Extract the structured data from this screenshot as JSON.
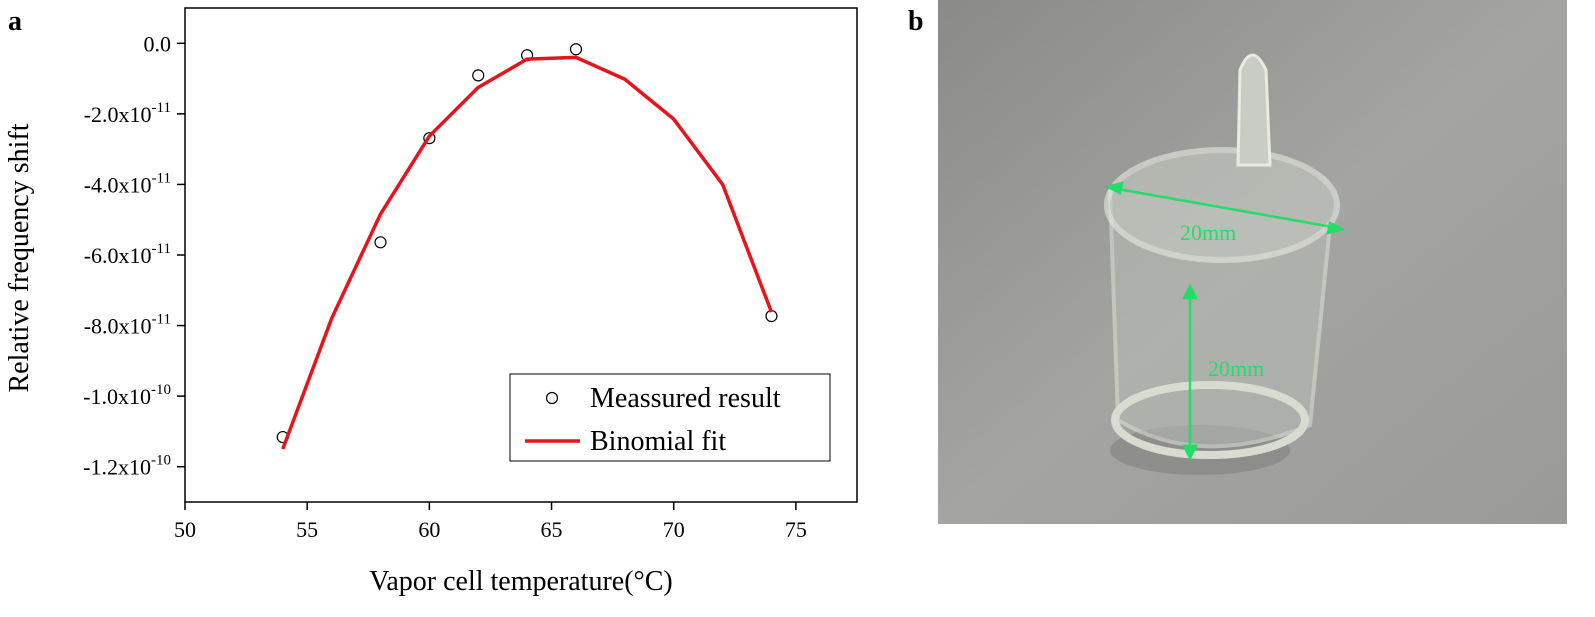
{
  "panel_labels": [
    "a",
    "b"
  ],
  "chart_data": {
    "type": "scatter",
    "xlabel": "Vapor cell temperature(°C)",
    "ylabel": "Relative frequency shift",
    "xlim": [
      50,
      77.5
    ],
    "xticks": [
      50,
      55,
      60,
      65,
      70,
      75
    ],
    "ylim": [
      -1.3e-10,
      1e-11
    ],
    "yticks": [
      {
        "value": 0,
        "label": "0.0"
      },
      {
        "value": -2e-11,
        "label": "-2.0x10",
        "exponent": "-11"
      },
      {
        "value": -4e-11,
        "label": "-4.0x10",
        "exponent": "-11"
      },
      {
        "value": -6e-11,
        "label": "-6.0x10",
        "exponent": "-11"
      },
      {
        "value": -8e-11,
        "label": "-8.0x10",
        "exponent": "-11"
      },
      {
        "value": -1e-10,
        "label": "-1.0x10",
        "exponent": "-10"
      },
      {
        "value": -1.2e-10,
        "label": "-1.2x10",
        "exponent": "-10"
      }
    ],
    "legend": "lower right",
    "series": [
      {
        "name": "Meassured result",
        "type": "scatter",
        "color": "#000000",
        "x": [
          54,
          58,
          60,
          62,
          64,
          66,
          74
        ],
        "values": [
          -1.116e-10,
          -5.64e-11,
          -2.69e-11,
          -9.1e-12,
          -3.4e-12,
          -1.7e-12,
          -7.73e-11
        ]
      },
      {
        "name": "Binomial fit",
        "type": "line",
        "color": "#e8141b",
        "x": [
          54,
          56,
          58,
          60,
          62,
          64,
          66,
          68,
          70,
          72,
          74
        ],
        "values": [
          -1.15e-10,
          -7.8e-11,
          -4.84e-11,
          -2.63e-11,
          -1.25e-11,
          -4.5e-12,
          -4e-12,
          -1.02e-11,
          -2.15e-11,
          -4e-11,
          -7.62e-11
        ]
      }
    ]
  },
  "photo_annotations": [
    "20mm",
    "20mm"
  ]
}
